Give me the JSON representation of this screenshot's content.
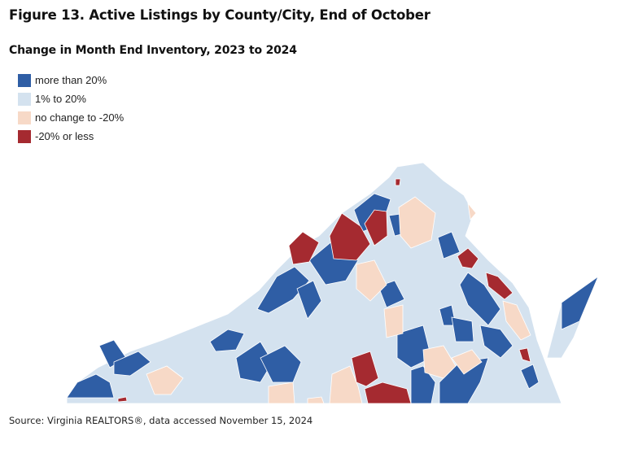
{
  "title": "Figure 13. Active Listings by County/City, End of October",
  "subtitle": "Change in Month End Inventory, 2023 to 2024",
  "legend": [
    {
      "label": "more than 20%",
      "color": "#2f5ea5"
    },
    {
      "label": "1% to 20%",
      "color": "#d4e2ef"
    },
    {
      "label": "no change to -20%",
      "color": "#f7d9c7"
    },
    {
      "label": "-20% or less",
      "color": "#a52a30"
    }
  ],
  "source": "Source: Virginia REALTORS®, data accessed November 15, 2024"
}
